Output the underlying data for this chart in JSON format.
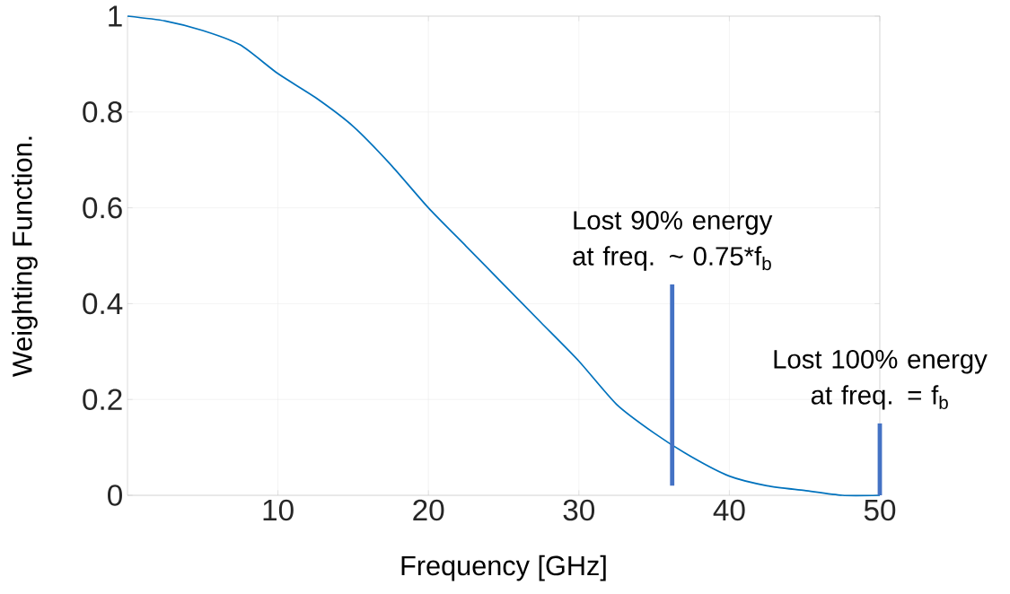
{
  "chart_data": {
    "type": "line",
    "xlabel": "Frequency [GHz]",
    "ylabel": "Weighting Function.",
    "xlim": [
      0,
      50
    ],
    "ylim": [
      0,
      1
    ],
    "xticks": [
      10,
      20,
      30,
      40,
      50
    ],
    "yticks": [
      0,
      0.2,
      0.4,
      0.6,
      0.8,
      1
    ],
    "grid": true,
    "marker": "none",
    "line_style": "solid",
    "series": [
      {
        "color": "#0072bd",
        "x": [
          0,
          2.5,
          5,
          7.5,
          10,
          12.5,
          15,
          17.5,
          20,
          22.5,
          25,
          27.5,
          30,
          32.5,
          35,
          37.5,
          40,
          42.5,
          45,
          47.5,
          50
        ],
        "values": [
          1,
          0.99,
          0.97,
          0.94,
          0.88,
          0.83,
          0.77,
          0.69,
          0.6,
          0.52,
          0.44,
          0.36,
          0.28,
          0.19,
          0.13,
          0.08,
          0.04,
          0.02,
          0.01,
          0,
          0
        ]
      },
      {
        "color": "#4472c4",
        "x": [
          36.2,
          36.2
        ],
        "values": [
          0.02,
          0.44
        ]
      },
      {
        "color": "#4472c4",
        "x": [
          50,
          50
        ],
        "values": [
          0,
          0.15
        ]
      }
    ],
    "annotations": [
      {
        "text": "Lost 90% energy at freq. ~ 0.75*f$_{b}$",
        "x": 36.2,
        "y": 0.44
      },
      {
        "text": "Lost 100% energy at freq. = f$_{b}$",
        "x": 50,
        "y": 0.15
      }
    ]
  }
}
